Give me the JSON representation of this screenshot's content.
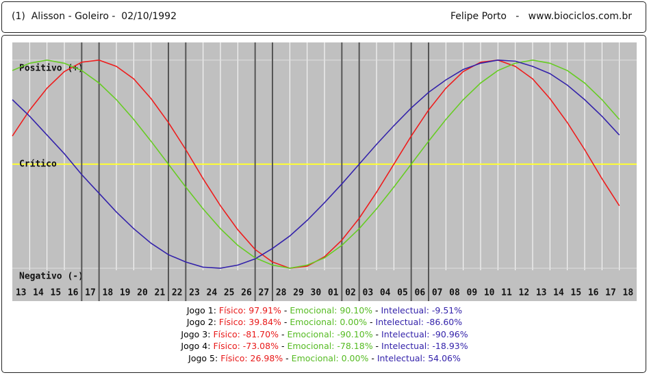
{
  "header": {
    "left": "(1)  Alisson - Goleiro -  02/10/1992",
    "right": "Felipe Porto   -   www.biociclos.com.br"
  },
  "chart_data": {
    "type": "line",
    "categories": [
      "13",
      "14",
      "15",
      "16",
      "17",
      "18",
      "19",
      "20",
      "21",
      "22",
      "23",
      "24",
      "25",
      "26",
      "27",
      "28",
      "29",
      "30",
      "01",
      "02",
      "03",
      "04",
      "05",
      "06",
      "07",
      "08",
      "09",
      "10",
      "11",
      "12",
      "13",
      "14",
      "15",
      "16",
      "17",
      "18"
    ],
    "series": [
      {
        "name": "Físico",
        "color": "#ee1c1c",
        "values": [
          27,
          52,
          73,
          89,
          98,
          100,
          94,
          82,
          63,
          40,
          14,
          -14,
          -40,
          -63,
          -82,
          -94,
          -100,
          -98,
          -89,
          -73,
          -52,
          -27,
          0,
          27,
          52,
          73,
          89,
          98,
          100,
          94,
          82,
          63,
          40,
          14,
          -14,
          -40
        ]
      },
      {
        "name": "Emocional",
        "color": "#66cc22",
        "values": [
          90,
          97,
          100,
          97,
          90,
          78,
          62,
          43,
          22,
          0,
          -22,
          -43,
          -62,
          -78,
          -90,
          -97,
          -100,
          -97,
          -90,
          -78,
          -62,
          -43,
          -22,
          0,
          22,
          43,
          62,
          78,
          90,
          97,
          100,
          97,
          90,
          78,
          62,
          43
        ]
      },
      {
        "name": "Intelectual",
        "color": "#3322aa",
        "values": [
          62,
          46,
          28,
          10,
          -10,
          -28,
          -46,
          -62,
          -76,
          -87,
          -94,
          -99,
          -100,
          -97,
          -91,
          -81,
          -69,
          -54,
          -37,
          -19,
          0,
          19,
          37,
          54,
          69,
          81,
          91,
          97,
          100,
          99,
          94,
          87,
          76,
          62,
          46,
          28
        ]
      }
    ],
    "ylim": [
      -102,
      117
    ],
    "yticks": [
      {
        "value": 100,
        "label": "Positivo (+)"
      },
      {
        "value": 0,
        "label": "Crítico"
      },
      {
        "value": -100,
        "label": "Negativo (-)"
      }
    ],
    "zero_line_color": "#ffff33",
    "highlight_days": [
      4,
      9,
      14,
      19,
      23
    ]
  },
  "games": {
    "separator": " - ",
    "rows": [
      {
        "label": "Jogo 1:",
        "fisico": "Físico: 97.91%",
        "emocional": "Emocional: 90.10%",
        "intelectual": "Intelectual: -9.51%"
      },
      {
        "label": "Jogo 2:",
        "fisico": "Físico: 39.84%",
        "emocional": "Emocional: 0.00%",
        "intelectual": "Intelectual: -86.60%"
      },
      {
        "label": "Jogo 3:",
        "fisico": "Físico: -81.70%",
        "emocional": "Emocional: -90.10%",
        "intelectual": "Intelectual: -90.96%"
      },
      {
        "label": "Jogo 4:",
        "fisico": "Físico: -73.08%",
        "emocional": "Emocional: -78.18%",
        "intelectual": "Intelectual: -18.93%"
      },
      {
        "label": "Jogo 5:",
        "fisico": "Físico: 26.98%",
        "emocional": "Emocional: 0.00%",
        "intelectual": "Intelectual: 54.06%"
      }
    ]
  }
}
